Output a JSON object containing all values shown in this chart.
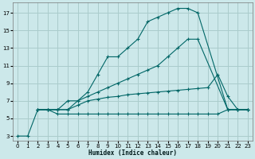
{
  "bg_color": "#cce8ea",
  "grid_color": "#aacccc",
  "line_color": "#006666",
  "xlabel": "Humidex (Indice chaleur)",
  "xlim": [
    -0.5,
    23.5
  ],
  "ylim": [
    2.5,
    18.2
  ],
  "xticks": [
    0,
    1,
    2,
    3,
    4,
    5,
    6,
    7,
    8,
    9,
    10,
    11,
    12,
    13,
    14,
    15,
    16,
    17,
    18,
    19,
    20,
    21,
    22,
    23
  ],
  "yticks": [
    3,
    5,
    7,
    9,
    11,
    13,
    15,
    17
  ],
  "line1_x": [
    0,
    1,
    2,
    3,
    4,
    5,
    6,
    7,
    8,
    9,
    10,
    11,
    12,
    13,
    14,
    15,
    16,
    17,
    18,
    21,
    22,
    23
  ],
  "line1_y": [
    3,
    3,
    6,
    6,
    6,
    7,
    7,
    8,
    10,
    12,
    12,
    13,
    14,
    16,
    16.5,
    17,
    17.5,
    17.5,
    17,
    6,
    6,
    6
  ],
  "line2_x": [
    2,
    3,
    4,
    5,
    6,
    7,
    8,
    9,
    10,
    11,
    12,
    13,
    14,
    15,
    16,
    17,
    18,
    21,
    22,
    23
  ],
  "line2_y": [
    6,
    6,
    6,
    6,
    7,
    7.5,
    8,
    8.5,
    9,
    9.5,
    10,
    10.5,
    11,
    12,
    13,
    14,
    14,
    6,
    6,
    6
  ],
  "line3_x": [
    2,
    3,
    4,
    5,
    6,
    7,
    8,
    9,
    10,
    11,
    12,
    13,
    14,
    15,
    16,
    17,
    18,
    19,
    20,
    21,
    22,
    23
  ],
  "line3_y": [
    6,
    6,
    6,
    6,
    6.5,
    7,
    7.2,
    7.4,
    7.5,
    7.7,
    7.8,
    7.9,
    8.0,
    8.1,
    8.2,
    8.3,
    8.4,
    8.5,
    10,
    7.5,
    6,
    6
  ],
  "line4_x": [
    2,
    3,
    4,
    5,
    6,
    7,
    8,
    9,
    10,
    11,
    12,
    13,
    14,
    15,
    16,
    17,
    18,
    19,
    20,
    21,
    22,
    23
  ],
  "line4_y": [
    6,
    6,
    5.5,
    5.5,
    5.5,
    5.5,
    5.5,
    5.5,
    5.5,
    5.5,
    5.5,
    5.5,
    5.5,
    5.5,
    5.5,
    5.5,
    5.5,
    5.5,
    5.5,
    6,
    6,
    6
  ]
}
